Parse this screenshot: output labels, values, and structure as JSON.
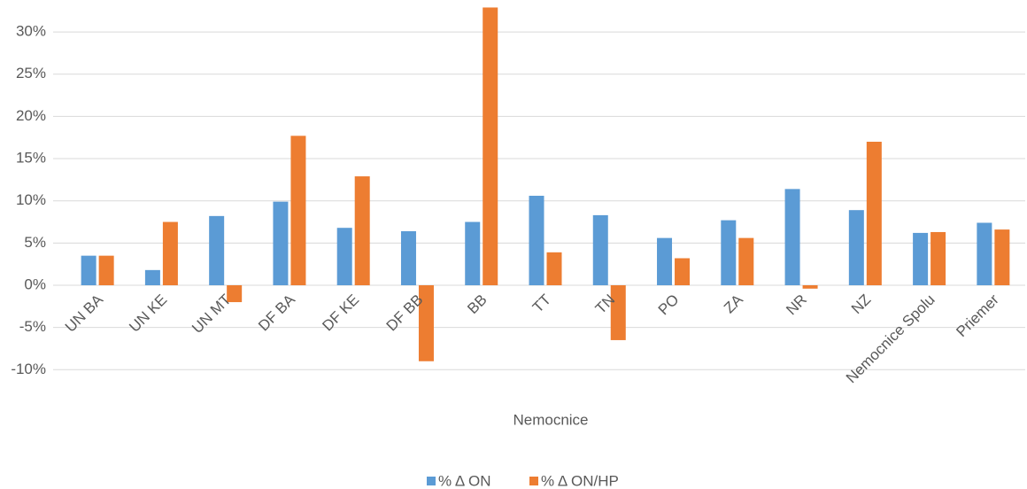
{
  "chart_data": {
    "type": "bar",
    "x_label": "Nemocnice",
    "categories": [
      "UN BA",
      "UN KE",
      "UN MT",
      "DF BA",
      "DF KE",
      "DF BB",
      "BB",
      "TT",
      "TN",
      "PO",
      "ZA",
      "NR",
      "NZ",
      "Nemocnice Spolu",
      "Priemer"
    ],
    "series": [
      {
        "name": "% Δ ON",
        "color": "#5b9bd5",
        "values": [
          3.5,
          1.8,
          8.2,
          9.9,
          6.8,
          6.4,
          7.5,
          10.6,
          8.3,
          5.6,
          7.7,
          11.4,
          8.9,
          6.2,
          7.4
        ]
      },
      {
        "name": "% Δ ON/HP",
        "color": "#ed7d31",
        "values": [
          3.5,
          7.5,
          -2.0,
          17.7,
          12.9,
          -9.0,
          32.9,
          3.9,
          -6.5,
          3.2,
          5.6,
          -0.4,
          17.0,
          6.3,
          6.6
        ]
      }
    ],
    "ylim": [
      -10,
      33
    ],
    "yticks": [
      {
        "value": -10,
        "label": "-10%"
      },
      {
        "value": -5,
        "label": "-5%"
      },
      {
        "value": 0,
        "label": "0%"
      },
      {
        "value": 5,
        "label": "5%"
      },
      {
        "value": 10,
        "label": "10%"
      },
      {
        "value": 15,
        "label": "15%"
      },
      {
        "value": 20,
        "label": "20%"
      },
      {
        "value": 25,
        "label": "25%"
      },
      {
        "value": 30,
        "label": "30%"
      }
    ],
    "grid": true,
    "legend": "bottom"
  }
}
